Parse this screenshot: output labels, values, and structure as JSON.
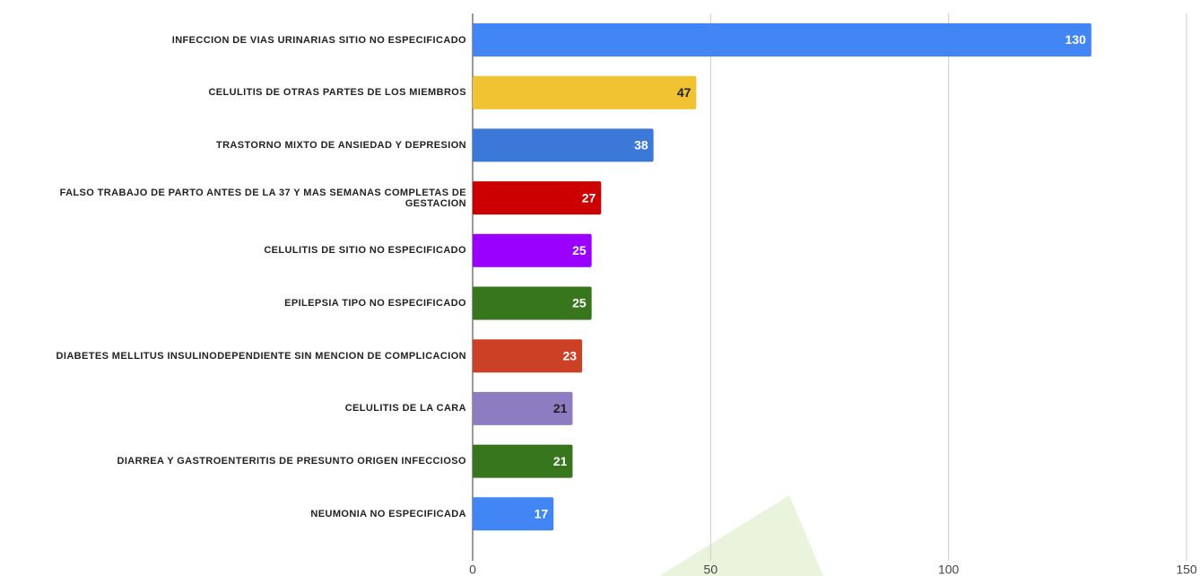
{
  "chart_data": {
    "type": "bar",
    "orientation": "horizontal",
    "categories": [
      "INFECCION DE VIAS URINARIAS SITIO NO ESPECIFICADO",
      "CELULITIS DE OTRAS PARTES DE LOS MIEMBROS",
      "TRASTORNO MIXTO DE ANSIEDAD Y DEPRESION",
      "FALSO TRABAJO DE PARTO ANTES DE LA 37 Y MAS SEMANAS COMPLETAS DE GESTACION",
      "CELULITIS DE SITIO NO ESPECIFICADO",
      "EPILEPSIA TIPO NO ESPECIFICADO",
      "DIABETES MELLITUS INSULINODEPENDIENTE SIN MENCION DE COMPLICACION",
      "CELULITIS DE LA CARA",
      "DIARREA Y GASTROENTERITIS DE PRESUNTO ORIGEN INFECCIOSO",
      "NEUMONIA NO ESPECIFICADA"
    ],
    "values": [
      130,
      47,
      38,
      27,
      25,
      25,
      23,
      21,
      21,
      17
    ],
    "colors": [
      "#4285f4",
      "#f1c232",
      "#3c78d8",
      "#cc0000",
      "#9900ff",
      "#38761d",
      "#cc4125",
      "#8e7cc3",
      "#38761d",
      "#4285f4"
    ],
    "xlim": [
      0,
      150
    ],
    "xticks": [
      0,
      50,
      100,
      150
    ],
    "grid": true,
    "data_labels": true
  }
}
